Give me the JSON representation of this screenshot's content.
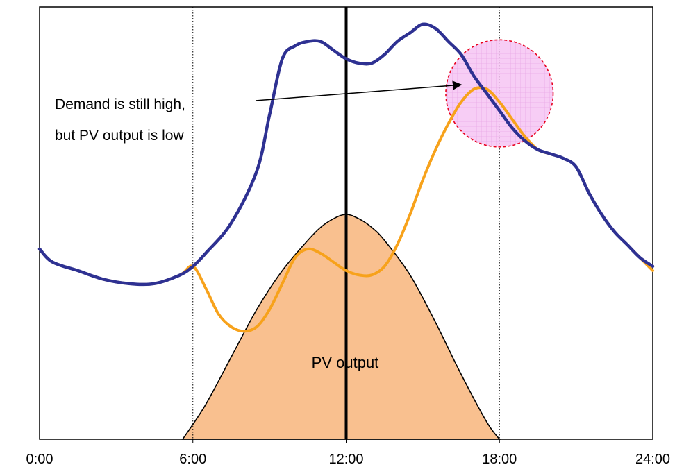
{
  "chart_data": {
    "type": "line",
    "title": "",
    "xlabel": "",
    "ylabel": "",
    "xlim": [
      0,
      24
    ],
    "ylim": [
      0,
      100
    ],
    "x_tick_labels": [
      "0:00",
      "6:00",
      "12:00",
      "18:00",
      "24:00"
    ],
    "x_ticks": [
      0,
      6,
      12,
      18,
      24
    ],
    "vertical_markers": [
      {
        "x": 6,
        "style": "dotted"
      },
      {
        "x": 12,
        "style": "solid-bold"
      },
      {
        "x": 18,
        "style": "dotted"
      }
    ],
    "series": [
      {
        "color": "#2e3192",
        "x": [
          0,
          0.5,
          1.5,
          2.5,
          3.5,
          4.5,
          5.5,
          6.0,
          6.5,
          7.5,
          8.5,
          9.0,
          9.5,
          10.0,
          10.5,
          11.0,
          11.5,
          12.0,
          12.5,
          13.0,
          13.5,
          14.0,
          14.5,
          15.0,
          15.5,
          16.0,
          16.5,
          17.0,
          17.5,
          18.0,
          18.5,
          19.0,
          19.5,
          20.0,
          20.5,
          21.0,
          21.5,
          22.0,
          22.5,
          23.0,
          23.5,
          24.0
        ],
        "y": [
          44,
          41,
          39,
          37,
          36,
          36,
          38,
          40,
          43,
          50,
          62,
          75,
          88,
          91,
          92,
          92,
          90,
          88,
          87,
          87,
          89,
          92,
          94,
          96,
          95,
          92,
          89,
          84,
          80,
          76,
          72,
          69,
          67,
          66,
          65,
          63,
          57,
          52,
          48,
          45,
          42,
          40
        ]
      },
      {
        "color": "#f7a21b",
        "x": [
          0,
          0.5,
          1.5,
          2.5,
          3.5,
          4.5,
          5.5,
          6.0,
          6.5,
          7.0,
          7.5,
          8.0,
          8.5,
          9.0,
          9.5,
          10.0,
          10.5,
          11.0,
          11.5,
          12.0,
          12.5,
          13.0,
          13.5,
          14.0,
          14.5,
          15.0,
          15.5,
          16.0,
          16.5,
          17.0,
          17.5,
          18.0,
          18.5,
          19.0,
          19.5,
          20.0,
          20.5,
          21.0,
          21.5,
          22.0,
          22.5,
          23.0,
          23.5,
          24.0
        ],
        "y": [
          44,
          41,
          39,
          37,
          36,
          36,
          38,
          40,
          35,
          29,
          26,
          25,
          26,
          30,
          36,
          42,
          44,
          43,
          41,
          39,
          38,
          38,
          40,
          45,
          52,
          60,
          67,
          73,
          78,
          81,
          81,
          78,
          74,
          70,
          67,
          66,
          65,
          63,
          57,
          52,
          48,
          45,
          42,
          39
        ]
      }
    ],
    "pv_output": {
      "label": "PV output",
      "color": "#f9c08f",
      "x": [
        5.6,
        6.5,
        7.5,
        8.5,
        9.5,
        10.5,
        11.0,
        11.5,
        12.0,
        12.5,
        13.0,
        13.5,
        14.5,
        15.5,
        16.5,
        17.5,
        18.0
      ],
      "y": [
        0,
        8,
        19,
        30,
        39,
        46,
        49,
        51,
        52,
        51,
        49,
        46,
        38,
        27,
        15,
        4,
        0
      ]
    },
    "annotation": {
      "lines": [
        "Demand is still high,",
        "but PV output is low"
      ],
      "arrow_target": [
        16.5,
        82
      ],
      "circle_center": [
        18.0,
        80
      ],
      "circle_radius_hours": 2.1,
      "circle_color": "#e8009c"
    }
  }
}
